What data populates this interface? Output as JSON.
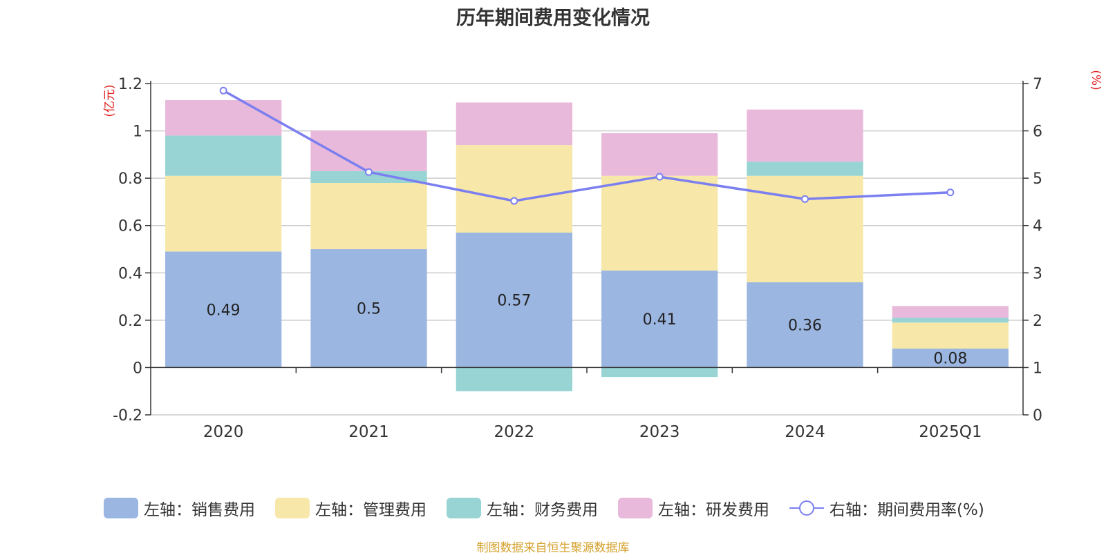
{
  "chart_data": {
    "type": "bar",
    "title": "历年期间费用变化情况",
    "categories": [
      "2020",
      "2021",
      "2022",
      "2023",
      "2024",
      "2025Q1"
    ],
    "stacked": true,
    "left_axis": {
      "unit_label": "(亿元)",
      "range": [
        -0.2,
        1.2
      ],
      "ticks": [
        "-0.2",
        "0",
        "0.2",
        "0.4",
        "0.6",
        "0.8",
        "1",
        "1.2"
      ]
    },
    "right_axis": {
      "unit_label": "(%)",
      "range": [
        0,
        7
      ],
      "ticks": [
        "0",
        "1",
        "2",
        "3",
        "4",
        "5",
        "6",
        "7"
      ]
    },
    "series": [
      {
        "name": "左轴：销售费用",
        "axis": "left",
        "color": "#9bb6e1",
        "values": [
          0.49,
          0.5,
          0.57,
          0.41,
          0.36,
          0.08
        ],
        "data_labels": [
          "0.49",
          "0.5",
          "0.57",
          "0.41",
          "0.36",
          "0.08"
        ]
      },
      {
        "name": "左轴：管理费用",
        "axis": "left",
        "color": "#f7e7a8",
        "values": [
          0.32,
          0.28,
          0.37,
          0.4,
          0.45,
          0.11
        ]
      },
      {
        "name": "左轴：财务费用",
        "axis": "left",
        "color": "#98d4d4",
        "values": [
          0.17,
          0.05,
          -0.1,
          -0.04,
          0.06,
          0.02
        ]
      },
      {
        "name": "左轴：研发费用",
        "axis": "left",
        "color": "#e8b9da",
        "values": [
          0.15,
          0.17,
          0.18,
          0.18,
          0.22,
          0.05
        ]
      }
    ],
    "line_series": {
      "name": "右轴：期间费用率(%)",
      "axis": "right",
      "color": "#7b7ff0",
      "values": [
        6.85,
        5.13,
        4.52,
        5.03,
        4.56,
        4.7
      ]
    },
    "legend_position": "bottom",
    "grid": true
  },
  "footer": {
    "source": "制图数据来自恒生聚源数据库"
  }
}
